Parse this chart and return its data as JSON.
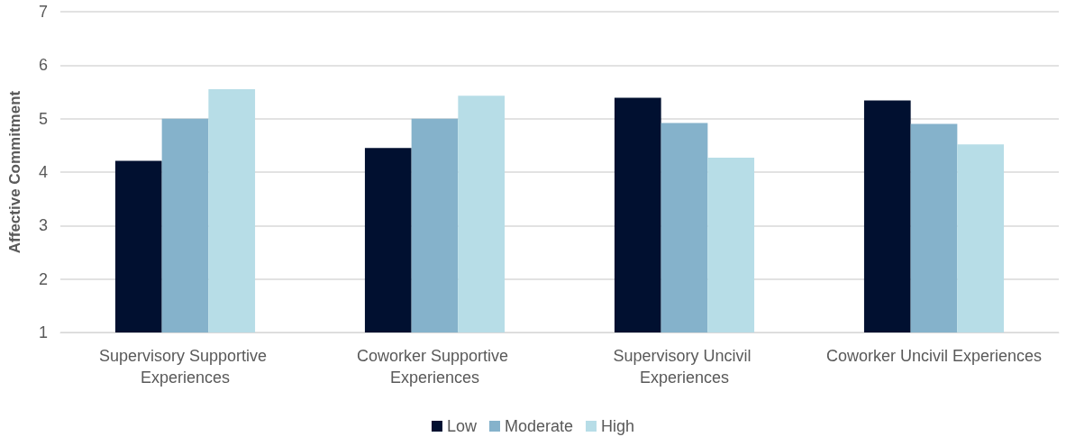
{
  "chart_data": {
    "type": "bar",
    "ylabel": "Affective Commitment",
    "categories": [
      "Supervisory Supportive Experiences",
      "Coworker Supportive Experiences",
      "Supervisory Uncivil Experiences",
      "Coworker Uncivil Experiences"
    ],
    "series": [
      {
        "name": "Low",
        "color": "#011030",
        "values": [
          4.21,
          4.45,
          5.39,
          5.34
        ]
      },
      {
        "name": "Moderate",
        "color": "#85b2cb",
        "values": [
          5.0,
          5.0,
          4.92,
          4.9
        ]
      },
      {
        "name": "High",
        "color": "#b7dde7",
        "values": [
          5.55,
          5.43,
          4.27,
          4.52
        ]
      }
    ],
    "ylim": [
      1,
      7
    ],
    "yticks": [
      1,
      2,
      3,
      4,
      5,
      6,
      7
    ],
    "grid": "y",
    "legend": "bottom"
  }
}
